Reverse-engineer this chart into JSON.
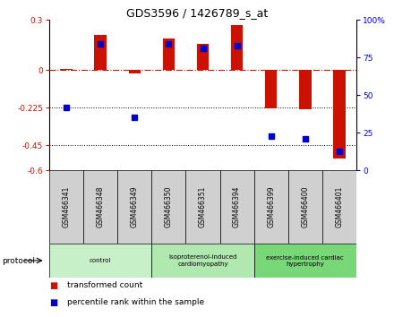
{
  "title": "GDS3596 / 1426789_s_at",
  "samples": [
    "GSM466341",
    "GSM466348",
    "GSM466349",
    "GSM466350",
    "GSM466351",
    "GSM466394",
    "GSM466399",
    "GSM466400",
    "GSM466401"
  ],
  "red_bars": [
    0.005,
    0.21,
    -0.02,
    0.19,
    0.155,
    0.27,
    -0.23,
    -0.235,
    -0.53
  ],
  "blue_dots": [
    -0.225,
    0.155,
    -0.285,
    0.155,
    0.13,
    0.145,
    -0.395,
    -0.41,
    -0.49
  ],
  "ylim": [
    -0.6,
    0.3
  ],
  "ylim_right": [
    0,
    100
  ],
  "yticks_left": [
    0.3,
    0.0,
    -0.225,
    -0.45,
    -0.6
  ],
  "ytick_labels_left": [
    "0.3",
    "0",
    "-0.225",
    "-0.45",
    "-0.6"
  ],
  "yticks_right": [
    100,
    75,
    50,
    25,
    0
  ],
  "hline_y": 0.0,
  "dotted_lines": [
    -0.225,
    -0.45
  ],
  "protocol_groups": [
    {
      "label": "control",
      "start": 0,
      "end": 3,
      "color": "#c8f0c8"
    },
    {
      "label": "isoproterenol-induced\ncardiomyopathy",
      "start": 3,
      "end": 6,
      "color": "#b0e8b0"
    },
    {
      "label": "exercise-induced cardiac\nhypertrophy",
      "start": 6,
      "end": 9,
      "color": "#78d878"
    }
  ],
  "red_color": "#cc1100",
  "blue_color": "#0000cc",
  "bar_width": 0.35,
  "dot_size": 25,
  "legend_red_label": "transformed count",
  "legend_blue_label": "percentile rank within the sample",
  "protocol_label": "protocol",
  "sample_box_color": "#d0d0d0"
}
